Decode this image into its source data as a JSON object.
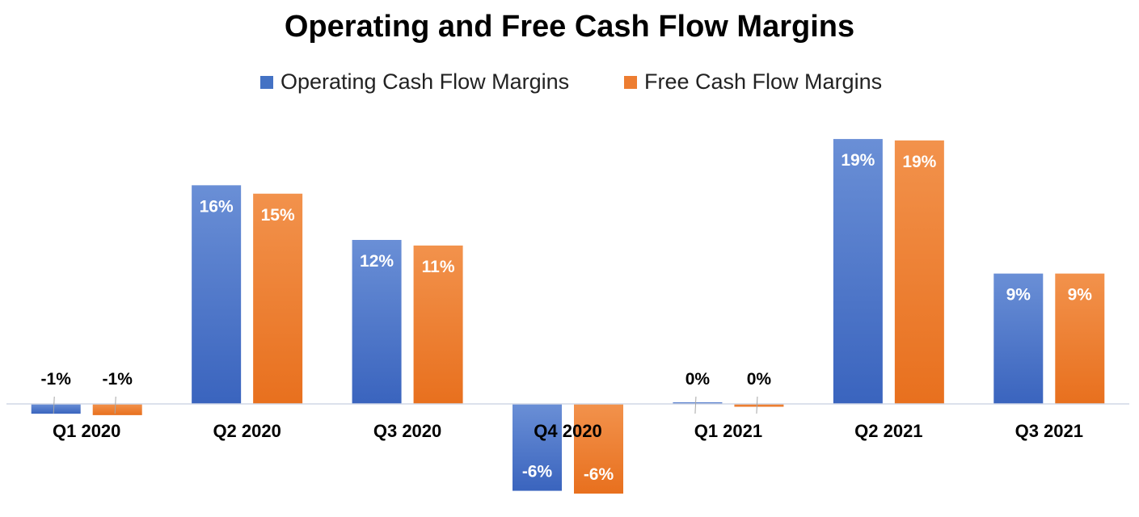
{
  "chart_data": {
    "type": "bar",
    "title": "Operating and Free Cash Flow Margins",
    "categories": [
      "Q1 2020",
      "Q2 2020",
      "Q3 2020",
      "Q4 2020",
      "Q1 2021",
      "Q2 2021",
      "Q3 2021"
    ],
    "series": [
      {
        "name": "Operating Cash Flow Margins",
        "values": [
          -0.7,
          15.6,
          11.7,
          -6.2,
          0.1,
          18.9,
          9.3
        ],
        "labels": [
          "-1%",
          "16%",
          "12%",
          "-6%",
          "0%",
          "19%",
          "9%"
        ],
        "color": "#4472C4"
      },
      {
        "name": "Free Cash Flow Margins",
        "values": [
          -0.8,
          15.0,
          11.3,
          -6.4,
          -0.2,
          18.8,
          9.3
        ],
        "labels": [
          "-1%",
          "15%",
          "11%",
          "-6%",
          "0%",
          "19%",
          "9%"
        ],
        "color": "#ED7D31"
      }
    ],
    "legend_position": "top",
    "grid": false
  }
}
